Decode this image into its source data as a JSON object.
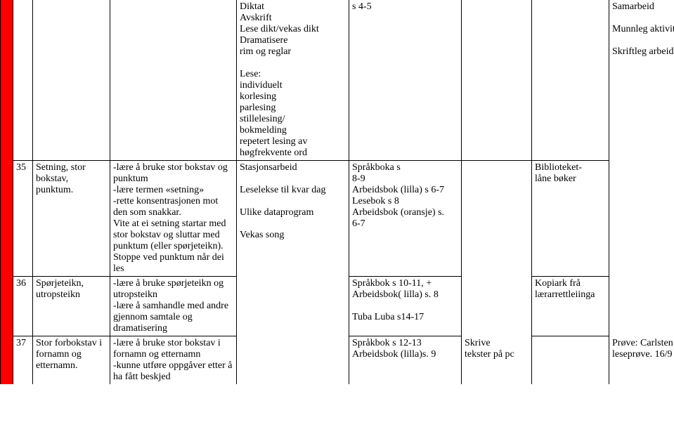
{
  "table": {
    "rows": [
      {
        "num": "",
        "topic": "",
        "goals": "",
        "activities": "Diktat\nAvskrift\nLese dikt/vekas dikt\nDramatisere\nrim og reglar\n\nLese:\nindividuelt\nkorlesing\nparlesing\nstillelesing/\nbokmelding\nrepetert lesing av\nhøgfrekvente ord",
        "resources": "s 4-5",
        "assess": "",
        "extra1": "",
        "extra2": "Samarbeid\n\nMunnleg aktivitet\n\nSkriftleg arbeid"
      },
      {
        "num": "35",
        "topic": "Setning, stor bokstav, punktum.",
        "goals": "-lære å bruke stor bokstav og punktum\n-lære termen «setning»\n-rette konsentrasjonen mot den som snakkar.\nVite at ei setning startar med stor bokstav og sluttar med punktum (eller spørjeteikn). Stoppe ved punktum når dei les",
        "activities": "Stasjonsarbeid\n\nLeselekse til kvar dag\n\nUlike dataprogram\n\nVekas song",
        "resources": "Språkboka s\n8-9\n Arbeidsbok (lilla) s 6-7\nLesebok s 8\n Arbeidsbok (oransje) s.\n6-7",
        "assess": "",
        "extra1": "Biblioteket-\nlåne bøker",
        "extra2": ""
      },
      {
        "num": "36",
        "topic": "Spørjeteikn, utropsteikn",
        "goals": "-lære å bruke spørjeteikn og utropsteikn\n-lære å samhandle med andre gjennom samtale og dramatisering",
        "activities": "",
        "resources": "Språkbok s 10-11, +\nArbeidsbok( lilla) s. 8\n\nTuba Luba s14-17",
        "assess": "",
        "extra1": "Kopiark frå lærarrettleiinga",
        "extra2": ""
      },
      {
        "num": "37",
        "topic": "Stor forbokstav i fornamn og etternamn.",
        "goals": "-lære å bruke stor bokstav i fornamn og etternamn\n-kunne utføre oppgåver etter å ha fått beskjed",
        "activities": "",
        "resources": "Språkbok s 12-13\nArbeidsbok (lilla)s. 9",
        "assess": "Skrive\ntekster på pc",
        "extra1": "",
        "extra2": "Prøve: Carlsten leseprøve. 16/9"
      }
    ]
  }
}
